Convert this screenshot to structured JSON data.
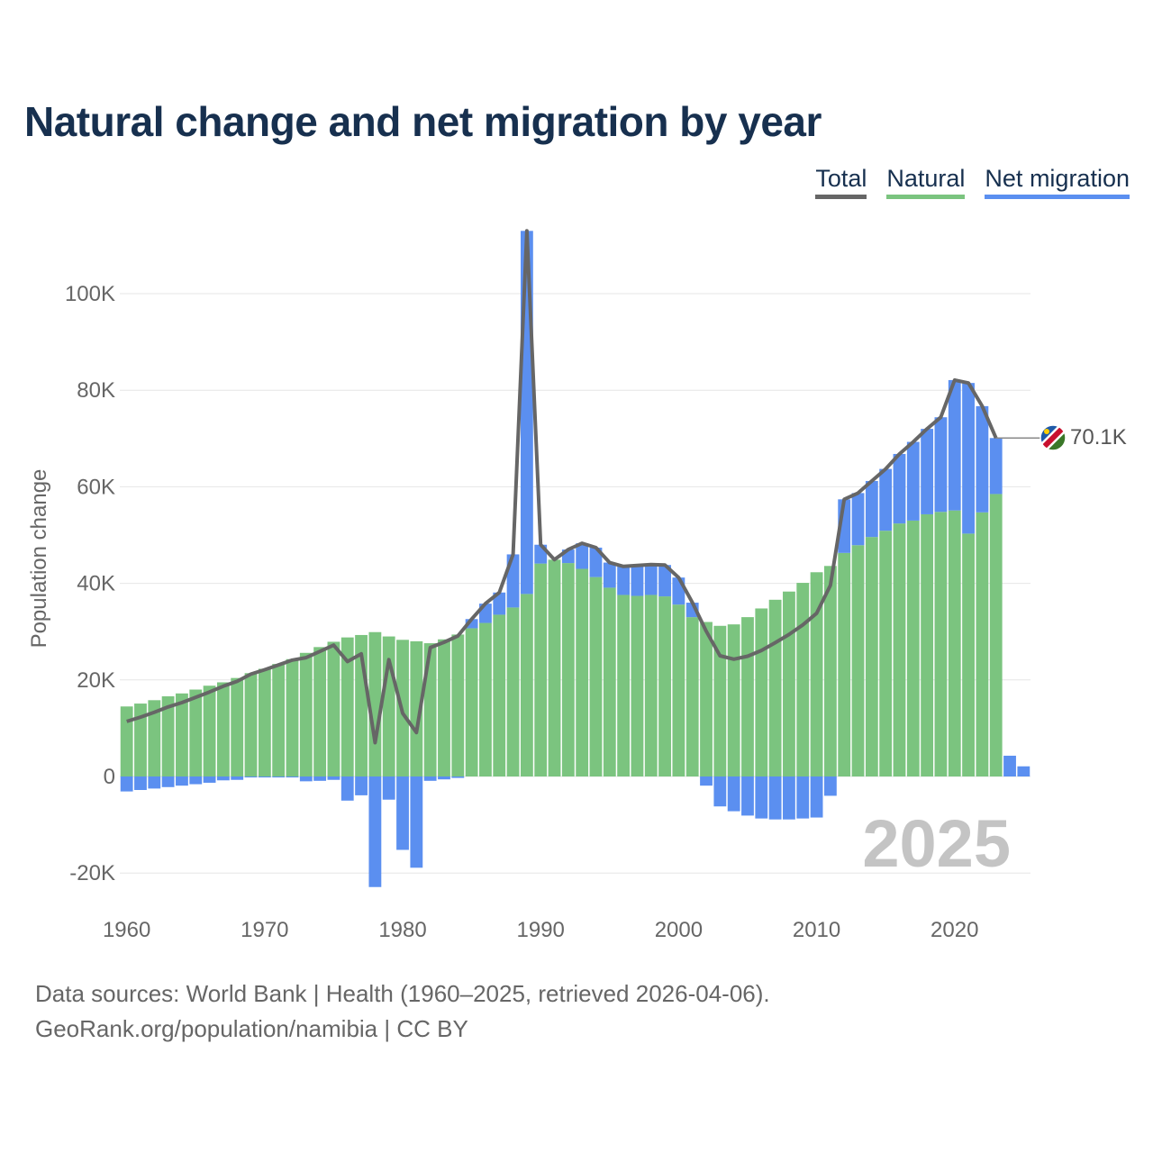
{
  "chart_data": {
    "type": "bar",
    "title": "Natural change and net migration by year",
    "xlabel": "",
    "ylabel": "Population change",
    "ylim": [
      -27000,
      114000
    ],
    "yticks": [
      -20000,
      0,
      20000,
      40000,
      60000,
      80000,
      100000
    ],
    "ytick_labels": [
      "-20K",
      "0",
      "20K",
      "40K",
      "60K",
      "80K",
      "100K"
    ],
    "xticks": [
      1960,
      1970,
      1980,
      1990,
      2000,
      2010,
      2020
    ],
    "xtick_labels": [
      "1960",
      "1970",
      "1980",
      "1990",
      "2000",
      "2010",
      "2020"
    ],
    "grid": true,
    "legend": [
      "Total",
      "Natural",
      "Net migration"
    ],
    "legend_position": "top-right",
    "colors": {
      "total": "#666666",
      "natural": "#7bc47f",
      "migration": "#5b8ff0",
      "grid": "#e6e6e6"
    },
    "x": [
      1960,
      1961,
      1962,
      1963,
      1964,
      1965,
      1966,
      1967,
      1968,
      1969,
      1970,
      1971,
      1972,
      1973,
      1974,
      1975,
      1976,
      1977,
      1978,
      1979,
      1980,
      1981,
      1982,
      1983,
      1984,
      1985,
      1986,
      1987,
      1988,
      1989,
      1990,
      1991,
      1992,
      1993,
      1994,
      1995,
      1996,
      1997,
      1998,
      1999,
      2000,
      2001,
      2002,
      2003,
      2004,
      2005,
      2006,
      2007,
      2008,
      2009,
      2010,
      2011,
      2012,
      2013,
      2014,
      2015,
      2016,
      2017,
      2018,
      2019,
      2020,
      2021,
      2022,
      2023,
      2024,
      2025
    ],
    "series": [
      {
        "name": "Natural",
        "values": [
          14500,
          15100,
          15800,
          16600,
          17200,
          18000,
          18800,
          19500,
          20400,
          21400,
          22300,
          23300,
          24300,
          25600,
          26800,
          27900,
          28800,
          29300,
          29900,
          29000,
          28300,
          28000,
          27600,
          28400,
          29400,
          30700,
          31800,
          33500,
          35000,
          37800,
          44100,
          44900,
          44200,
          43000,
          41300,
          39100,
          37600,
          37400,
          37600,
          37300,
          35600,
          33000,
          32000,
          31200,
          31500,
          33000,
          34800,
          36600,
          38300,
          40100,
          42300,
          43600,
          46300,
          47900,
          49600,
          50900,
          52400,
          53000,
          54300,
          54800,
          55100,
          50300,
          54700,
          58500,
          0,
          0
        ]
      },
      {
        "name": "Net migration",
        "values": [
          -3100,
          -2800,
          -2500,
          -2200,
          -1900,
          -1600,
          -1300,
          -800,
          -700,
          -200,
          -200,
          -200,
          -200,
          -1000,
          -900,
          -700,
          -5000,
          -3900,
          -22900,
          -4800,
          -15200,
          -18900,
          -900,
          -600,
          -300,
          1900,
          4000,
          4600,
          11000,
          75200,
          3900,
          0,
          2800,
          5300,
          6100,
          5200,
          5900,
          6300,
          6300,
          6500,
          5600,
          3000,
          -1900,
          -6200,
          -7200,
          -8100,
          -8700,
          -8900,
          -8900,
          -8700,
          -8500,
          -4000,
          11100,
          10800,
          11600,
          12800,
          14400,
          16300,
          17700,
          19600,
          27000,
          31200,
          22000,
          11600,
          4300,
          2100
        ]
      },
      {
        "name": "Total",
        "values": [
          11400,
          12300,
          13300,
          14400,
          15300,
          16400,
          17500,
          18700,
          19700,
          21200,
          22100,
          23100,
          24100,
          24600,
          25900,
          27200,
          23800,
          25400,
          7000,
          24200,
          13100,
          9100,
          26700,
          27800,
          29100,
          32600,
          35800,
          38100,
          46000,
          113000,
          48000,
          44900,
          47000,
          48300,
          47400,
          44300,
          43500,
          43700,
          43900,
          43800,
          41200,
          36000,
          30100,
          25000,
          24300,
          24900,
          26100,
          27700,
          29400,
          31400,
          33800,
          39600,
          57400,
          58700,
          61200,
          63700,
          66800,
          69300,
          72000,
          74400,
          82100,
          81500,
          76700,
          70100,
          null,
          null
        ]
      }
    ],
    "end_label": "70.1K",
    "year_watermark": "2025"
  },
  "footer": {
    "line1": "Data sources: World Bank | Health (1960–2025, retrieved 2026-04-06).",
    "line2": "GeoRank.org/population/namibia | CC BY"
  }
}
